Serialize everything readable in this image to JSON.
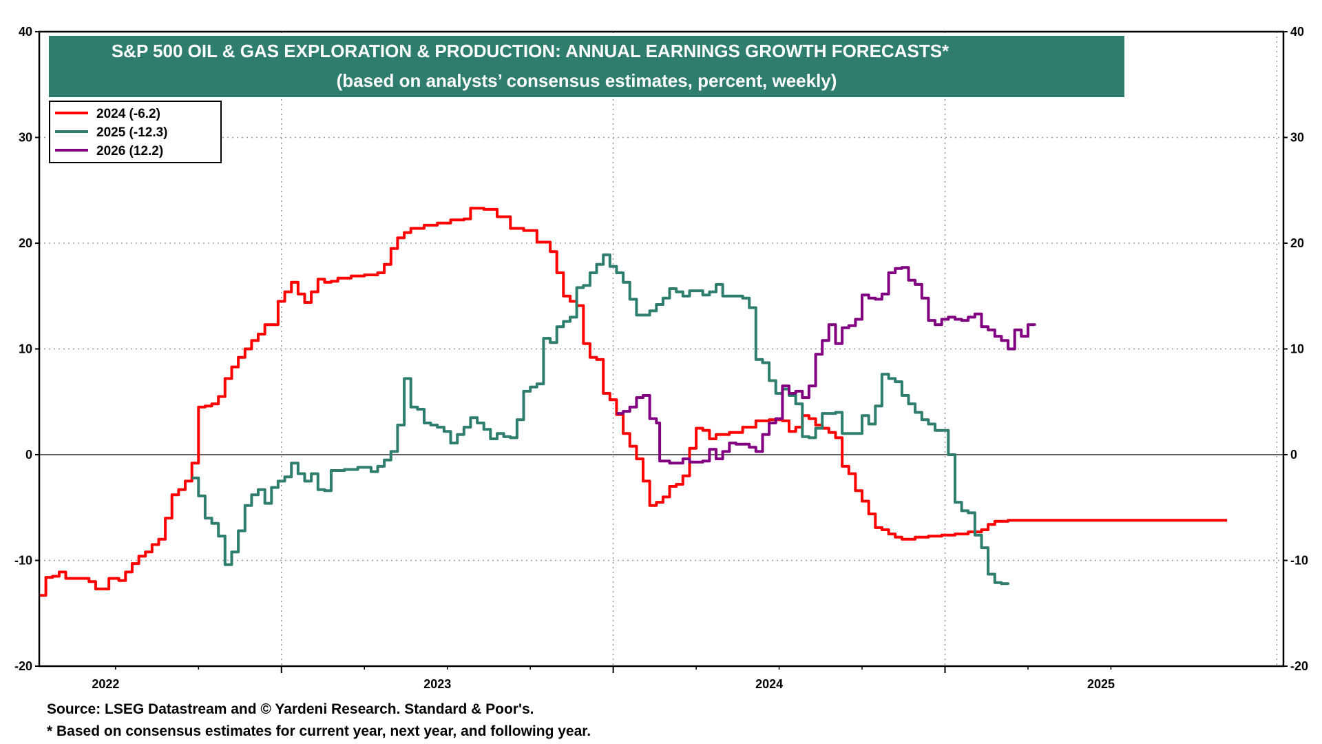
{
  "chart_data": {
    "type": "line",
    "title": "S&P 500  OIL & GAS EXPLORATION & PRODUCTION: ANNUAL EARNINGS GROWTH FORECASTS*",
    "subtitle": "(based on analysts’ consensus estimates, percent, weekly)",
    "ylim": [
      -20,
      40
    ],
    "yticks": [
      -20,
      -10,
      0,
      10,
      20,
      30,
      40
    ],
    "xlim": [
      2021.8,
      2025.55
    ],
    "xticks": [
      2022,
      2023,
      2024,
      2025
    ],
    "xtick_labels": [
      "2022",
      "2023",
      "2024",
      "2025"
    ],
    "grid": true,
    "legend_position": "top-left",
    "series": [
      {
        "name": "2024 (-6.2)",
        "color": "#ff0000",
        "points": [
          [
            2021.8,
            -13.3
          ],
          [
            2021.82,
            -11.6
          ],
          [
            2021.84,
            -11.5
          ],
          [
            2021.86,
            -11.1
          ],
          [
            2021.88,
            -11.7
          ],
          [
            2021.92,
            -11.7
          ],
          [
            2021.95,
            -12.0
          ],
          [
            2021.97,
            -12.7
          ],
          [
            2021.99,
            -12.7
          ],
          [
            2022.01,
            -11.7
          ],
          [
            2022.04,
            -11.9
          ],
          [
            2022.06,
            -11.1
          ],
          [
            2022.08,
            -10.3
          ],
          [
            2022.1,
            -9.6
          ],
          [
            2022.12,
            -9.2
          ],
          [
            2022.14,
            -8.5
          ],
          [
            2022.16,
            -8.0
          ],
          [
            2022.18,
            -6.0
          ],
          [
            2022.2,
            -3.8
          ],
          [
            2022.22,
            -3.3
          ],
          [
            2022.24,
            -2.5
          ],
          [
            2022.26,
            -0.8
          ],
          [
            2022.27,
            -0.8
          ],
          [
            2022.28,
            4.5
          ],
          [
            2022.3,
            4.6
          ],
          [
            2022.32,
            4.8
          ],
          [
            2022.34,
            5.5
          ],
          [
            2022.36,
            7.2
          ],
          [
            2022.38,
            8.3
          ],
          [
            2022.4,
            9.2
          ],
          [
            2022.42,
            10.0
          ],
          [
            2022.44,
            10.8
          ],
          [
            2022.46,
            11.4
          ],
          [
            2022.48,
            12.3
          ],
          [
            2022.5,
            12.3
          ],
          [
            2022.52,
            14.5
          ],
          [
            2022.54,
            15.4
          ],
          [
            2022.56,
            16.3
          ],
          [
            2022.58,
            15.2
          ],
          [
            2022.6,
            14.4
          ],
          [
            2022.62,
            15.4
          ],
          [
            2022.64,
            16.6
          ],
          [
            2022.66,
            16.3
          ],
          [
            2022.68,
            16.4
          ],
          [
            2022.7,
            16.7
          ],
          [
            2022.74,
            16.9
          ],
          [
            2022.78,
            17.0
          ],
          [
            2022.82,
            17.2
          ],
          [
            2022.84,
            18.0
          ],
          [
            2022.86,
            19.5
          ],
          [
            2022.88,
            20.5
          ],
          [
            2022.9,
            21.0
          ],
          [
            2022.92,
            21.4
          ],
          [
            2022.96,
            21.7
          ],
          [
            2023.0,
            21.9
          ],
          [
            2023.04,
            22.2
          ],
          [
            2023.08,
            22.3
          ],
          [
            2023.1,
            23.3
          ],
          [
            2023.14,
            23.2
          ],
          [
            2023.18,
            22.5
          ],
          [
            2023.22,
            21.4
          ],
          [
            2023.26,
            21.2
          ],
          [
            2023.3,
            20.1
          ],
          [
            2023.34,
            19.2
          ],
          [
            2023.36,
            17.2
          ],
          [
            2023.38,
            15.0
          ],
          [
            2023.4,
            14.5
          ],
          [
            2023.42,
            14.1
          ],
          [
            2023.44,
            10.5
          ],
          [
            2023.46,
            9.2
          ],
          [
            2023.48,
            9.0
          ],
          [
            2023.5,
            5.8
          ],
          [
            2023.52,
            5.2
          ],
          [
            2023.54,
            3.8
          ],
          [
            2023.56,
            2.0
          ],
          [
            2023.58,
            0.8
          ],
          [
            2023.6,
            -0.4
          ],
          [
            2023.62,
            -2.5
          ],
          [
            2023.64,
            -4.8
          ],
          [
            2023.66,
            -4.5
          ],
          [
            2023.68,
            -4.0
          ],
          [
            2023.7,
            -3.0
          ],
          [
            2023.72,
            -2.8
          ],
          [
            2023.74,
            -2.0
          ],
          [
            2023.76,
            0.6
          ],
          [
            2023.78,
            2.5
          ],
          [
            2023.8,
            2.3
          ],
          [
            2023.82,
            1.5
          ],
          [
            2023.84,
            1.9
          ],
          [
            2023.88,
            2.1
          ],
          [
            2023.92,
            2.6
          ],
          [
            2023.96,
            3.2
          ],
          [
            2024.0,
            3.3
          ],
          [
            2024.04,
            3.2
          ],
          [
            2024.06,
            2.2
          ],
          [
            2024.08,
            2.6
          ],
          [
            2024.1,
            3.7
          ],
          [
            2024.12,
            3.4
          ],
          [
            2024.14,
            2.8
          ],
          [
            2024.16,
            2.5
          ],
          [
            2024.18,
            2.1
          ],
          [
            2024.2,
            1.6
          ],
          [
            2024.22,
            -1.1
          ],
          [
            2024.24,
            -1.8
          ],
          [
            2024.26,
            -3.4
          ],
          [
            2024.28,
            -4.4
          ],
          [
            2024.3,
            -5.6
          ],
          [
            2024.32,
            -6.9
          ],
          [
            2024.34,
            -7.1
          ],
          [
            2024.36,
            -7.5
          ],
          [
            2024.38,
            -7.8
          ],
          [
            2024.4,
            -8.0
          ],
          [
            2024.42,
            -8.0
          ],
          [
            2024.44,
            -7.8
          ],
          [
            2024.48,
            -7.7
          ],
          [
            2024.52,
            -7.6
          ],
          [
            2024.56,
            -7.5
          ],
          [
            2024.6,
            -7.3
          ],
          [
            2024.64,
            -7.1
          ],
          [
            2024.66,
            -6.6
          ],
          [
            2024.68,
            -6.3
          ],
          [
            2024.72,
            -6.2
          ],
          [
            2025.38,
            -6.2
          ]
        ]
      },
      {
        "name": "2025 (-12.3)",
        "color": "#2e7d6d",
        "points": [
          [
            2022.26,
            -2.2
          ],
          [
            2022.28,
            -3.9
          ],
          [
            2022.3,
            -6.0
          ],
          [
            2022.32,
            -6.5
          ],
          [
            2022.34,
            -7.7
          ],
          [
            2022.36,
            -10.4
          ],
          [
            2022.37,
            -10.4
          ],
          [
            2022.38,
            -9.2
          ],
          [
            2022.4,
            -7.2
          ],
          [
            2022.42,
            -4.8
          ],
          [
            2022.44,
            -3.8
          ],
          [
            2022.46,
            -3.3
          ],
          [
            2022.48,
            -4.6
          ],
          [
            2022.5,
            -3.1
          ],
          [
            2022.52,
            -2.5
          ],
          [
            2022.54,
            -2.1
          ],
          [
            2022.56,
            -0.8
          ],
          [
            2022.58,
            -1.8
          ],
          [
            2022.6,
            -2.5
          ],
          [
            2022.62,
            -1.8
          ],
          [
            2022.64,
            -3.3
          ],
          [
            2022.66,
            -3.4
          ],
          [
            2022.68,
            -1.5
          ],
          [
            2022.72,
            -1.4
          ],
          [
            2022.76,
            -1.2
          ],
          [
            2022.8,
            -1.6
          ],
          [
            2022.82,
            -1.1
          ],
          [
            2022.84,
            -0.5
          ],
          [
            2022.86,
            0.3
          ],
          [
            2022.88,
            2.8
          ],
          [
            2022.9,
            7.2
          ],
          [
            2022.92,
            4.5
          ],
          [
            2022.94,
            4.3
          ],
          [
            2022.96,
            3.0
          ],
          [
            2022.98,
            2.8
          ],
          [
            2023.0,
            2.6
          ],
          [
            2023.02,
            2.2
          ],
          [
            2023.04,
            1.1
          ],
          [
            2023.06,
            1.9
          ],
          [
            2023.08,
            2.6
          ],
          [
            2023.1,
            3.5
          ],
          [
            2023.12,
            3.0
          ],
          [
            2023.14,
            2.4
          ],
          [
            2023.16,
            1.5
          ],
          [
            2023.18,
            2.0
          ],
          [
            2023.2,
            1.7
          ],
          [
            2023.22,
            1.6
          ],
          [
            2023.24,
            3.3
          ],
          [
            2023.26,
            6.0
          ],
          [
            2023.28,
            6.4
          ],
          [
            2023.3,
            6.7
          ],
          [
            2023.32,
            11.0
          ],
          [
            2023.34,
            10.6
          ],
          [
            2023.36,
            12.1
          ],
          [
            2023.38,
            12.6
          ],
          [
            2023.4,
            13.0
          ],
          [
            2023.42,
            15.8
          ],
          [
            2023.44,
            16.0
          ],
          [
            2023.46,
            17.2
          ],
          [
            2023.48,
            18.0
          ],
          [
            2023.5,
            18.9
          ],
          [
            2023.52,
            17.8
          ],
          [
            2023.54,
            17.2
          ],
          [
            2023.56,
            16.3
          ],
          [
            2023.58,
            14.7
          ],
          [
            2023.6,
            13.2
          ],
          [
            2023.64,
            13.6
          ],
          [
            2023.66,
            14.2
          ],
          [
            2023.68,
            14.8
          ],
          [
            2023.7,
            15.7
          ],
          [
            2023.72,
            15.4
          ],
          [
            2023.74,
            15.0
          ],
          [
            2023.76,
            15.5
          ],
          [
            2023.8,
            15.1
          ],
          [
            2023.82,
            15.4
          ],
          [
            2023.84,
            16.1
          ],
          [
            2023.86,
            15.0
          ],
          [
            2023.92,
            14.8
          ],
          [
            2023.94,
            13.9
          ],
          [
            2023.96,
            9.0
          ],
          [
            2023.98,
            8.7
          ],
          [
            2024.0,
            7.0
          ],
          [
            2024.02,
            5.8
          ],
          [
            2024.04,
            6.2
          ],
          [
            2024.06,
            5.6
          ],
          [
            2024.08,
            4.8
          ],
          [
            2024.1,
            1.7
          ],
          [
            2024.12,
            1.6
          ],
          [
            2024.14,
            2.5
          ],
          [
            2024.16,
            3.9
          ],
          [
            2024.2,
            4.0
          ],
          [
            2024.22,
            2.0
          ],
          [
            2024.26,
            2.0
          ],
          [
            2024.28,
            3.7
          ],
          [
            2024.3,
            2.9
          ],
          [
            2024.32,
            4.6
          ],
          [
            2024.34,
            7.6
          ],
          [
            2024.36,
            7.2
          ],
          [
            2024.38,
            6.9
          ],
          [
            2024.4,
            5.6
          ],
          [
            2024.42,
            4.8
          ],
          [
            2024.44,
            4.0
          ],
          [
            2024.46,
            3.3
          ],
          [
            2024.48,
            2.9
          ],
          [
            2024.5,
            2.3
          ],
          [
            2024.52,
            2.3
          ],
          [
            2024.54,
            0.0
          ],
          [
            2024.56,
            -4.5
          ],
          [
            2024.58,
            -5.3
          ],
          [
            2024.6,
            -5.5
          ],
          [
            2024.62,
            -7.6
          ],
          [
            2024.64,
            -8.8
          ],
          [
            2024.66,
            -11.3
          ],
          [
            2024.68,
            -12.1
          ],
          [
            2024.7,
            -12.2
          ],
          [
            2024.72,
            -12.3
          ]
        ]
      },
      {
        "name": "2026 (12.2)",
        "color": "#800080",
        "points": [
          [
            2023.54,
            3.9
          ],
          [
            2023.56,
            4.1
          ],
          [
            2023.58,
            4.5
          ],
          [
            2023.6,
            5.4
          ],
          [
            2023.62,
            5.6
          ],
          [
            2023.64,
            3.4
          ],
          [
            2023.66,
            3.0
          ],
          [
            2023.67,
            -0.6
          ],
          [
            2023.7,
            -0.8
          ],
          [
            2023.72,
            -0.8
          ],
          [
            2023.74,
            -0.4
          ],
          [
            2023.76,
            -0.7
          ],
          [
            2023.8,
            -0.6
          ],
          [
            2023.82,
            0.5
          ],
          [
            2023.84,
            -0.4
          ],
          [
            2023.86,
            0.3
          ],
          [
            2023.88,
            1.1
          ],
          [
            2023.9,
            1.0
          ],
          [
            2023.94,
            0.7
          ],
          [
            2023.96,
            0.3
          ],
          [
            2023.98,
            1.9
          ],
          [
            2024.0,
            3.0
          ],
          [
            2024.02,
            3.4
          ],
          [
            2024.04,
            6.5
          ],
          [
            2024.06,
            5.8
          ],
          [
            2024.08,
            6.0
          ],
          [
            2024.1,
            5.4
          ],
          [
            2024.12,
            6.5
          ],
          [
            2024.14,
            9.5
          ],
          [
            2024.16,
            10.8
          ],
          [
            2024.18,
            12.3
          ],
          [
            2024.2,
            10.5
          ],
          [
            2024.22,
            12.0
          ],
          [
            2024.24,
            12.2
          ],
          [
            2024.26,
            12.8
          ],
          [
            2024.28,
            15.1
          ],
          [
            2024.3,
            14.8
          ],
          [
            2024.32,
            14.7
          ],
          [
            2024.34,
            15.2
          ],
          [
            2024.36,
            17.2
          ],
          [
            2024.38,
            17.6
          ],
          [
            2024.4,
            17.7
          ],
          [
            2024.42,
            16.5
          ],
          [
            2024.44,
            16.1
          ],
          [
            2024.46,
            14.8
          ],
          [
            2024.48,
            12.7
          ],
          [
            2024.5,
            12.3
          ],
          [
            2024.52,
            12.8
          ],
          [
            2024.54,
            13.0
          ],
          [
            2024.56,
            12.8
          ],
          [
            2024.58,
            12.7
          ],
          [
            2024.6,
            13.0
          ],
          [
            2024.62,
            13.3
          ],
          [
            2024.64,
            12.1
          ],
          [
            2024.66,
            11.8
          ],
          [
            2024.68,
            11.2
          ],
          [
            2024.7,
            10.8
          ],
          [
            2024.72,
            10.0
          ],
          [
            2024.74,
            11.8
          ],
          [
            2024.76,
            11.2
          ],
          [
            2024.78,
            12.3
          ],
          [
            2024.8,
            12.2
          ]
        ]
      }
    ]
  },
  "footnotes": {
    "source": "Source: LSEG Datastream and © Yardeni Research. Standard & Poor's.",
    "note": "* Based on consensus estimates for current year, next year, and following year."
  }
}
